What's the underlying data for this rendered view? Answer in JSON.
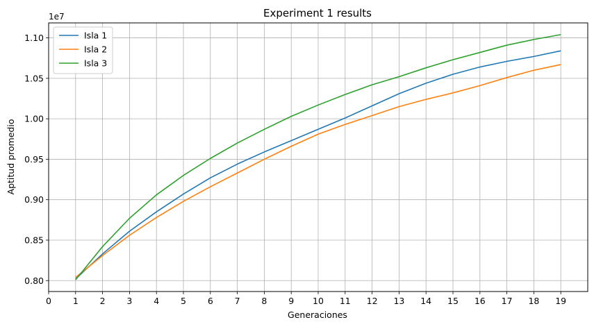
{
  "chart_data": {
    "type": "line",
    "title": "Experiment 1 results",
    "xlabel": "Generaciones",
    "ylabel": "Aptitud promedio",
    "y_offset_label": "1e7",
    "xlim": [
      0,
      20
    ],
    "ylim": [
      0.7865,
      1.1185
    ],
    "x_ticks": [
      0,
      1,
      2,
      3,
      4,
      5,
      6,
      7,
      8,
      9,
      10,
      11,
      12,
      13,
      14,
      15,
      16,
      17,
      18,
      19
    ],
    "y_ticks": [
      0.8,
      0.85,
      0.9,
      0.95,
      1.0,
      1.05,
      1.1
    ],
    "y_tick_labels": [
      "0.80",
      "0.85",
      "0.90",
      "0.95",
      "1.00",
      "1.05",
      "1.10"
    ],
    "grid": true,
    "legend_position": "top-left",
    "x": [
      1,
      2,
      3,
      4,
      5,
      6,
      7,
      8,
      9,
      10,
      11,
      12,
      13,
      14,
      15,
      16,
      17,
      18,
      19
    ],
    "series": [
      {
        "name": "Isla 1",
        "color": "#1f77b4",
        "values": [
          0.802,
          0.833,
          0.861,
          0.885,
          0.907,
          0.927,
          0.944,
          0.959,
          0.973,
          0.987,
          1.001,
          1.016,
          1.031,
          1.044,
          1.055,
          1.064,
          1.071,
          1.077,
          1.084
        ]
      },
      {
        "name": "Isla 2",
        "color": "#ff7f0e",
        "values": [
          0.804,
          0.831,
          0.856,
          0.878,
          0.898,
          0.916,
          0.933,
          0.95,
          0.966,
          0.981,
          0.993,
          1.004,
          1.015,
          1.024,
          1.032,
          1.041,
          1.051,
          1.06,
          1.067
        ]
      },
      {
        "name": "Isla 3",
        "color": "#2ca02c",
        "values": [
          0.801,
          0.842,
          0.877,
          0.906,
          0.93,
          0.951,
          0.97,
          0.987,
          1.003,
          1.017,
          1.03,
          1.042,
          1.052,
          1.063,
          1.073,
          1.082,
          1.091,
          1.098,
          1.104
        ]
      }
    ]
  }
}
